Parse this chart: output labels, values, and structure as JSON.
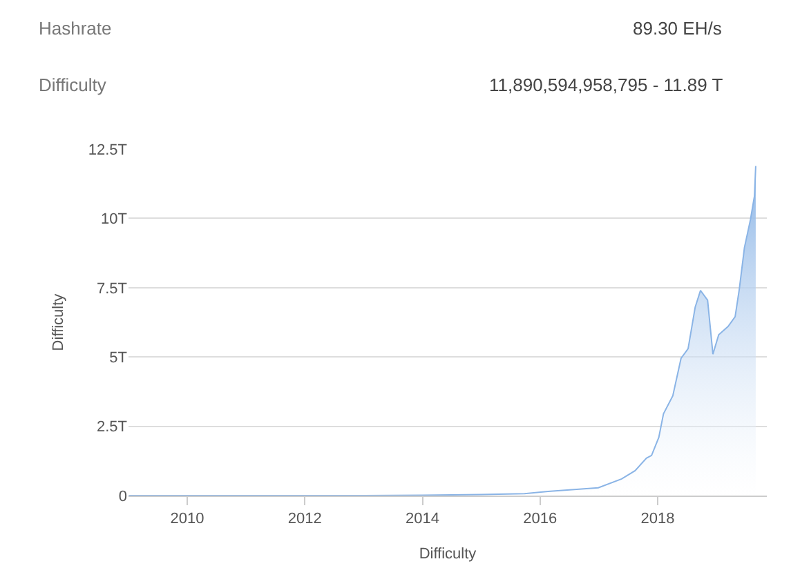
{
  "chart_data": {
    "type": "area",
    "xlabel": "Difficulty",
    "ylabel": "Difficulty",
    "annotations": [
      "Hashrate",
      "89.30 EH/s",
      "Difficulty",
      "11,890,594,958,795 - 11.89 T"
    ],
    "x": [
      "2009-01-03",
      "2010-01-01",
      "2011-01-01",
      "2012-01-01",
      "2013-01-01",
      "2014-01-01",
      "2015-01-01",
      "2015-09-27",
      "2016-02-20",
      "2016-12-28",
      "2017-05-22",
      "2017-08-14",
      "2017-10-23",
      "2017-11-24",
      "2018-01-08",
      "2018-02-06",
      "2018-04-05",
      "2018-05-26",
      "2018-07-09",
      "2018-08-22",
      "2018-09-24",
      "2018-11-07",
      "2018-12-10",
      "2019-01-15",
      "2019-03-14",
      "2019-04-27",
      "2019-05-23",
      "2019-06-24",
      "2019-07-31",
      "2019-08-25",
      "2019-09-02"
    ],
    "series": [
      {
        "color": "#8ab4e6",
        "values": [
          0,
          0,
          0,
          0,
          0,
          0.01,
          0.04,
          0.07,
          0.15,
          0.28,
          0.6,
          0.9,
          1.35,
          1.45,
          2.1,
          2.95,
          3.6,
          4.95,
          5.3,
          6.8,
          7.4,
          7.05,
          5.1,
          5.8,
          6.1,
          6.45,
          7.45,
          8.95,
          9.95,
          10.8,
          11.89
        ]
      }
    ],
    "xlim": [
      "2009-01-01",
      "2019-11-10"
    ],
    "xticks": [
      {
        "value": "2010",
        "label": "2010"
      },
      {
        "value": "2012",
        "label": "2012"
      },
      {
        "value": "2014",
        "label": "2014"
      },
      {
        "value": "2016",
        "label": "2016"
      },
      {
        "value": "2018",
        "label": "2018"
      }
    ],
    "ylim": [
      0,
      12.5
    ],
    "yticks": [
      0,
      {
        "value": 2.5,
        "label": "2.5T"
      },
      {
        "value": 5,
        "label": "5T"
      },
      {
        "value": 7.5,
        "label": "7.5T"
      },
      {
        "value": 10,
        "label": "10T"
      },
      {
        "value": 12.5,
        "label": "12.5T"
      }
    ],
    "grid": "y"
  }
}
